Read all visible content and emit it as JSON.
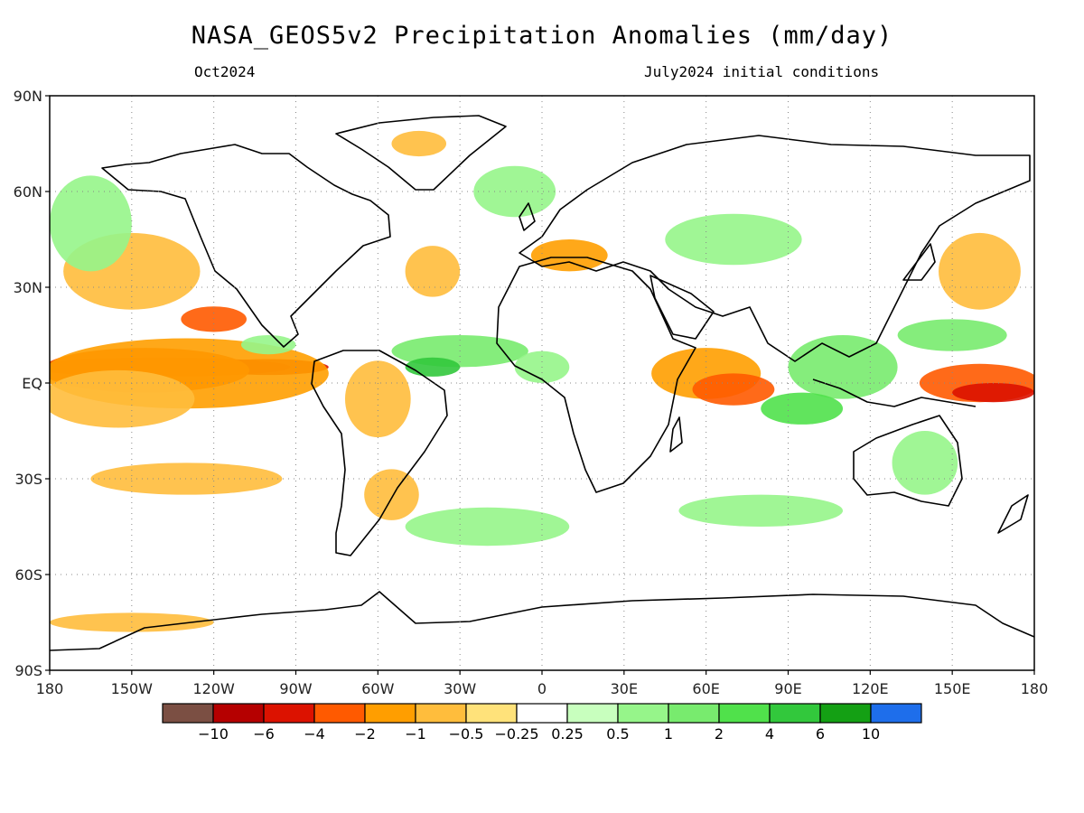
{
  "title": "NASA_GEOS5v2 Precipitation Anomalies (mm/day)",
  "subtitle_left": "Oct2024",
  "subtitle_right": "July2024 initial conditions",
  "map": {
    "lon_range": [
      -180,
      180
    ],
    "lat_range": [
      -90,
      90
    ],
    "grid": "dotted",
    "lat_ticks": [
      {
        "value": 90,
        "label": "90N"
      },
      {
        "value": 60,
        "label": "60N"
      },
      {
        "value": 30,
        "label": "30N"
      },
      {
        "value": 0,
        "label": "EQ"
      },
      {
        "value": -30,
        "label": "30S"
      },
      {
        "value": -60,
        "label": "60S"
      },
      {
        "value": -90,
        "label": "90S"
      }
    ],
    "lon_ticks": [
      {
        "value": -180,
        "label": "180"
      },
      {
        "value": -150,
        "label": "150W"
      },
      {
        "value": -120,
        "label": "120W"
      },
      {
        "value": -90,
        "label": "90W"
      },
      {
        "value": -60,
        "label": "60W"
      },
      {
        "value": -30,
        "label": "30W"
      },
      {
        "value": 0,
        "label": "0"
      },
      {
        "value": 30,
        "label": "30E"
      },
      {
        "value": 60,
        "label": "60E"
      },
      {
        "value": 90,
        "label": "90E"
      },
      {
        "value": 120,
        "label": "120E"
      },
      {
        "value": 150,
        "label": "150E"
      },
      {
        "value": 180,
        "label": "180"
      }
    ]
  },
  "colorbar": {
    "colors": [
      "#7b4f43",
      "#b50000",
      "#dc1200",
      "#ff5a00",
      "#ff9e00",
      "#ffbd3c",
      "#ffe27a",
      "#ffffff",
      "#c8ffbe",
      "#96f58a",
      "#78eb6e",
      "#50e14b",
      "#32c83c",
      "#14a014",
      "#1e6eeb"
    ],
    "labels": [
      "−10",
      "−6",
      "−4",
      "−2",
      "−1",
      "−0.5",
      "−0.25",
      "0.25",
      "0.5",
      "1",
      "2",
      "4",
      "6",
      "10"
    ]
  },
  "anomalies": [
    {
      "lon": -140,
      "lat": 5,
      "rx": 48,
      "ry": 3,
      "cls": 1
    },
    {
      "lon": -100,
      "lat": 5,
      "rx": 22,
      "ry": 2.5,
      "cls": 2
    },
    {
      "lon": -145,
      "lat": 4,
      "rx": 38,
      "ry": 7,
      "cls": 3
    },
    {
      "lon": -130,
      "lat": 3,
      "rx": 52,
      "ry": 11,
      "cls": 4
    },
    {
      "lon": -155,
      "lat": -5,
      "rx": 28,
      "ry": 9,
      "cls": 5
    },
    {
      "lon": -130,
      "lat": -30,
      "rx": 35,
      "ry": 5,
      "cls": 5
    },
    {
      "lon": -150,
      "lat": 35,
      "rx": 25,
      "ry": 12,
      "cls": 5
    },
    {
      "lon": -120,
      "lat": 20,
      "rx": 12,
      "ry": 4,
      "cls": 3
    },
    {
      "lon": -60,
      "lat": -5,
      "rx": 12,
      "ry": 12,
      "cls": 5
    },
    {
      "lon": -55,
      "lat": -35,
      "rx": 10,
      "ry": 8,
      "cls": 5
    },
    {
      "lon": -40,
      "lat": 35,
      "rx": 10,
      "ry": 8,
      "cls": 5
    },
    {
      "lon": 10,
      "lat": 40,
      "rx": 14,
      "ry": 5,
      "cls": 4
    },
    {
      "lon": 60,
      "lat": 3,
      "rx": 20,
      "ry": 8,
      "cls": 4
    },
    {
      "lon": 70,
      "lat": -2,
      "rx": 15,
      "ry": 5,
      "cls": 3
    },
    {
      "lon": 160,
      "lat": 0,
      "rx": 22,
      "ry": 6,
      "cls": 3
    },
    {
      "lon": 165,
      "lat": -3,
      "rx": 15,
      "ry": 3,
      "cls": 2
    },
    {
      "lon": 160,
      "lat": 35,
      "rx": 15,
      "ry": 12,
      "cls": 5
    },
    {
      "lon": -45,
      "lat": 75,
      "rx": 10,
      "ry": 4,
      "cls": 5
    },
    {
      "lon": -150,
      "lat": -75,
      "rx": 30,
      "ry": 3,
      "cls": 5
    },
    {
      "lon": -100,
      "lat": 12,
      "rx": 10,
      "ry": 3,
      "cls": 9
    },
    {
      "lon": -30,
      "lat": 10,
      "rx": 25,
      "ry": 5,
      "cls": 10
    },
    {
      "lon": -40,
      "lat": 5,
      "rx": 10,
      "ry": 3,
      "cls": 12
    },
    {
      "lon": 110,
      "lat": 5,
      "rx": 20,
      "ry": 10,
      "cls": 10
    },
    {
      "lon": 95,
      "lat": -8,
      "rx": 15,
      "ry": 5,
      "cls": 11
    },
    {
      "lon": 150,
      "lat": 15,
      "rx": 20,
      "ry": 5,
      "cls": 10
    },
    {
      "lon": 70,
      "lat": 45,
      "rx": 25,
      "ry": 8,
      "cls": 9
    },
    {
      "lon": 140,
      "lat": -25,
      "rx": 12,
      "ry": 10,
      "cls": 9
    },
    {
      "lon": -165,
      "lat": 50,
      "rx": 15,
      "ry": 15,
      "cls": 9
    },
    {
      "lon": -10,
      "lat": 60,
      "rx": 15,
      "ry": 8,
      "cls": 9
    },
    {
      "lon": -20,
      "lat": -45,
      "rx": 30,
      "ry": 6,
      "cls": 9
    },
    {
      "lon": 80,
      "lat": -40,
      "rx": 30,
      "ry": 5,
      "cls": 9
    },
    {
      "lon": 0,
      "lat": 5,
      "rx": 10,
      "ry": 5,
      "cls": 9
    }
  ]
}
